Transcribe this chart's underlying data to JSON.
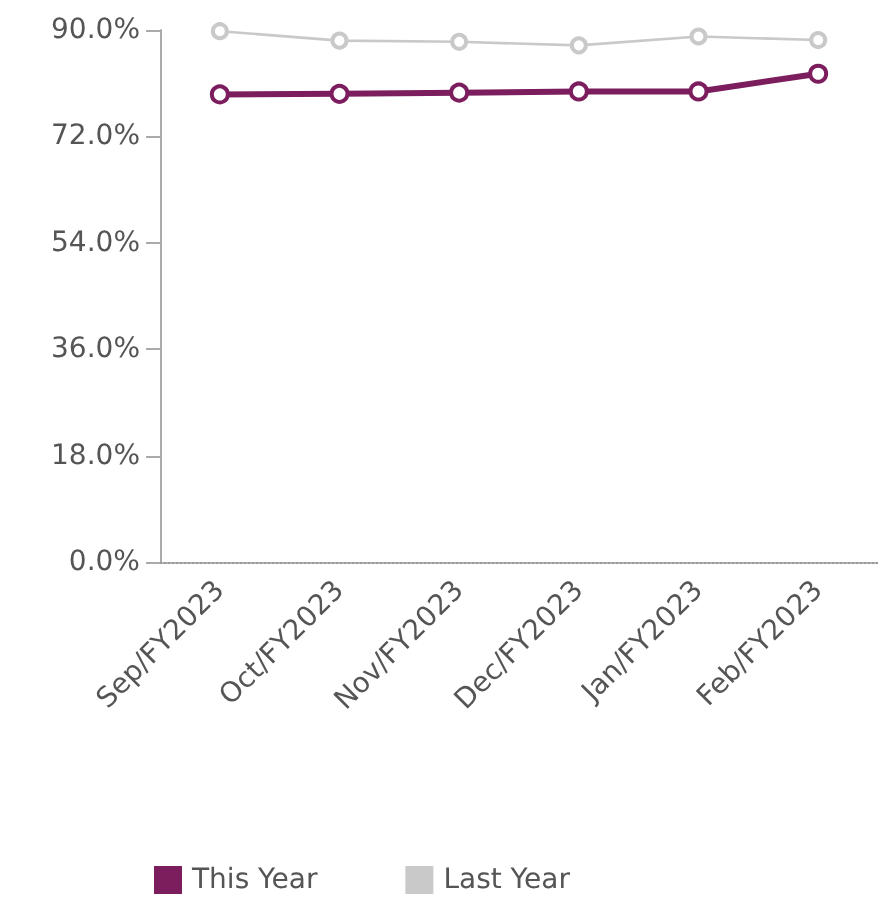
{
  "chart_data": {
    "type": "line",
    "categories": [
      "Sep/FY2023",
      "Oct/FY2023",
      "Nov/FY2023",
      "Dec/FY2023",
      "Jan/FY2023",
      "Feb/FY2023"
    ],
    "series": [
      {
        "name": "This Year",
        "color": "#7c1d5e",
        "values": [
          79.1,
          79.2,
          79.4,
          79.6,
          79.6,
          82.6
        ]
      },
      {
        "name": "Last Year",
        "color": "#c9c9c9",
        "values": [
          89.8,
          88.2,
          88.0,
          87.4,
          88.9,
          88.3
        ]
      }
    ],
    "ylim": [
      0,
      90
    ],
    "yticks": [
      {
        "value": 0,
        "label": "0.0%"
      },
      {
        "value": 18,
        "label": "18.0%"
      },
      {
        "value": 36,
        "label": "36.0%"
      },
      {
        "value": 54,
        "label": "54.0%"
      },
      {
        "value": 72,
        "label": "72.0%"
      },
      {
        "value": 90,
        "label": "90.0%"
      }
    ],
    "grid": false,
    "legend": "bottom",
    "marker": "circle",
    "line_style": "solid"
  }
}
